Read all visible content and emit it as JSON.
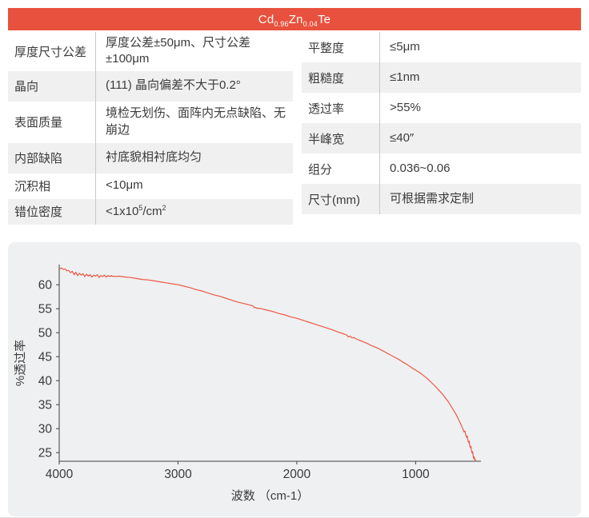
{
  "header": {
    "formula": {
      "base1": "Cd",
      "sub1": "0.96",
      "base2": "Zn",
      "sub2": "0.04",
      "base3": "Te"
    },
    "bar_color": "#e8513d"
  },
  "left_table": {
    "rows": [
      {
        "label": "厚度尺寸公差",
        "value": "厚度公差±50μm、尺寸公差±100μm"
      },
      {
        "label": "晶向",
        "value": "(111) 晶向偏差不大于0.2°"
      },
      {
        "label": "表面质量",
        "value": "境检无划伤、面阵内无点缺陷、无崩边"
      },
      {
        "label": "内部缺陷",
        "value": "衬底貌相衬底均匀"
      },
      {
        "label": "沉积相",
        "value": "<10μm"
      },
      {
        "label": "错位密度",
        "value_parts": {
          "base1": "<1x10",
          "sup1": "5",
          "base2": "/cm",
          "sup2": "2"
        }
      }
    ]
  },
  "right_table": {
    "rows": [
      {
        "label": "平整度",
        "value": "≤5μm"
      },
      {
        "label": "粗糙度",
        "value": "≤1nm"
      },
      {
        "label": "透过率",
        "value": ">55%"
      },
      {
        "label": "半峰宽",
        "value": "≤40″"
      },
      {
        "label": "组分",
        "value": "0.036~0.06"
      },
      {
        "label": "尺寸(mm)",
        "value": "可根据需求定制"
      }
    ]
  },
  "chart_data": {
    "type": "line",
    "title": "",
    "xlabel": "波数 （cm-1）",
    "ylabel": "%透过率",
    "x_axis_reversed": true,
    "xlim": [
      4000,
      450
    ],
    "ylim": [
      23.2,
      64.2
    ],
    "xticks": [
      4000,
      3000,
      2000,
      1000
    ],
    "yticks": [
      25,
      30,
      35,
      40,
      45,
      50,
      55,
      60
    ],
    "grid": false,
    "legend": "none",
    "panel_color": "#eff0f1",
    "line_color": "#ed5845",
    "axis_color": "#3f3f3f",
    "tick_text_color": "#3a3a3a",
    "series": [
      {
        "name": "透过率",
        "points": [
          [
            3995,
            63.3
          ],
          [
            3980,
            63.5
          ],
          [
            3965,
            63.2
          ],
          [
            3950,
            63.3
          ],
          [
            3935,
            62.9
          ],
          [
            3920,
            63.0
          ],
          [
            3905,
            62.5
          ],
          [
            3890,
            62.8
          ],
          [
            3875,
            62.1
          ],
          [
            3860,
            62.6
          ],
          [
            3845,
            61.9
          ],
          [
            3830,
            62.4
          ],
          [
            3815,
            62.0
          ],
          [
            3800,
            62.3
          ],
          [
            3785,
            61.7
          ],
          [
            3770,
            62.2
          ],
          [
            3755,
            61.8
          ],
          [
            3740,
            62.1
          ],
          [
            3725,
            61.6
          ],
          [
            3710,
            62.0
          ],
          [
            3695,
            61.8
          ],
          [
            3680,
            62.1
          ],
          [
            3665,
            61.5
          ],
          [
            3650,
            61.9
          ],
          [
            3635,
            61.7
          ],
          [
            3620,
            62.0
          ],
          [
            3605,
            61.6
          ],
          [
            3590,
            61.9
          ],
          [
            3575,
            61.7
          ],
          [
            3560,
            61.9
          ],
          [
            3545,
            61.7
          ],
          [
            3530,
            61.8
          ],
          [
            3515,
            61.7
          ],
          [
            3500,
            61.8
          ],
          [
            3470,
            61.7
          ],
          [
            3440,
            61.6
          ],
          [
            3400,
            61.5
          ],
          [
            3350,
            61.3
          ],
          [
            3300,
            61.1
          ],
          [
            3250,
            61.0
          ],
          [
            3200,
            60.8
          ],
          [
            3150,
            60.6
          ],
          [
            3100,
            60.4
          ],
          [
            3050,
            60.2
          ],
          [
            3000,
            60.0
          ],
          [
            2950,
            59.7
          ],
          [
            2900,
            59.4
          ],
          [
            2850,
            59.0
          ],
          [
            2800,
            58.7
          ],
          [
            2750,
            58.3
          ],
          [
            2700,
            57.9
          ],
          [
            2650,
            57.6
          ],
          [
            2600,
            57.2
          ],
          [
            2550,
            56.8
          ],
          [
            2500,
            56.4
          ],
          [
            2450,
            56.1
          ],
          [
            2400,
            55.8
          ],
          [
            2370,
            55.6
          ],
          [
            2358,
            55.2
          ],
          [
            2348,
            55.3
          ],
          [
            2338,
            55.1
          ],
          [
            2320,
            55.1
          ],
          [
            2300,
            55.0
          ],
          [
            2250,
            54.7
          ],
          [
            2200,
            54.4
          ],
          [
            2150,
            54.0
          ],
          [
            2100,
            53.7
          ],
          [
            2050,
            53.3
          ],
          [
            2000,
            53.0
          ],
          [
            1950,
            52.6
          ],
          [
            1900,
            52.2
          ],
          [
            1850,
            51.8
          ],
          [
            1800,
            51.4
          ],
          [
            1750,
            51.0
          ],
          [
            1700,
            50.6
          ],
          [
            1650,
            50.1
          ],
          [
            1600,
            49.7
          ],
          [
            1580,
            49.5
          ],
          [
            1565,
            49.1
          ],
          [
            1550,
            49.3
          ],
          [
            1535,
            48.9
          ],
          [
            1520,
            49.0
          ],
          [
            1500,
            48.7
          ],
          [
            1470,
            48.4
          ],
          [
            1440,
            48.1
          ],
          [
            1410,
            47.8
          ],
          [
            1380,
            47.4
          ],
          [
            1350,
            47.1
          ],
          [
            1320,
            46.8
          ],
          [
            1290,
            46.4
          ],
          [
            1260,
            46.0
          ],
          [
            1230,
            45.6
          ],
          [
            1200,
            45.2
          ],
          [
            1170,
            44.8
          ],
          [
            1140,
            44.4
          ],
          [
            1110,
            43.9
          ],
          [
            1080,
            43.5
          ],
          [
            1050,
            43.0
          ],
          [
            1020,
            42.5
          ],
          [
            1000,
            42.2
          ],
          [
            975,
            41.8
          ],
          [
            950,
            41.4
          ],
          [
            925,
            40.9
          ],
          [
            900,
            40.4
          ],
          [
            875,
            39.8
          ],
          [
            850,
            39.2
          ],
          [
            825,
            38.6
          ],
          [
            800,
            37.9
          ],
          [
            775,
            37.2
          ],
          [
            750,
            36.4
          ],
          [
            725,
            35.6
          ],
          [
            700,
            34.6
          ],
          [
            680,
            33.8
          ],
          [
            660,
            33.0
          ],
          [
            640,
            32.0
          ],
          [
            625,
            31.2
          ],
          [
            610,
            30.4
          ],
          [
            600,
            29.8
          ],
          [
            592,
            29.3
          ],
          [
            585,
            29.5
          ],
          [
            578,
            28.7
          ],
          [
            572,
            28.2
          ],
          [
            566,
            28.5
          ],
          [
            560,
            27.6
          ],
          [
            554,
            27.1
          ],
          [
            549,
            27.4
          ],
          [
            544,
            26.5
          ],
          [
            539,
            26.0
          ],
          [
            534,
            26.3
          ],
          [
            529,
            25.3
          ],
          [
            524,
            24.9
          ],
          [
            520,
            25.2
          ],
          [
            515,
            24.2
          ],
          [
            511,
            23.8
          ],
          [
            507,
            24.1
          ],
          [
            503,
            23.5
          ],
          [
            499,
            23.7
          ],
          [
            495,
            23.2
          ]
        ]
      }
    ]
  }
}
